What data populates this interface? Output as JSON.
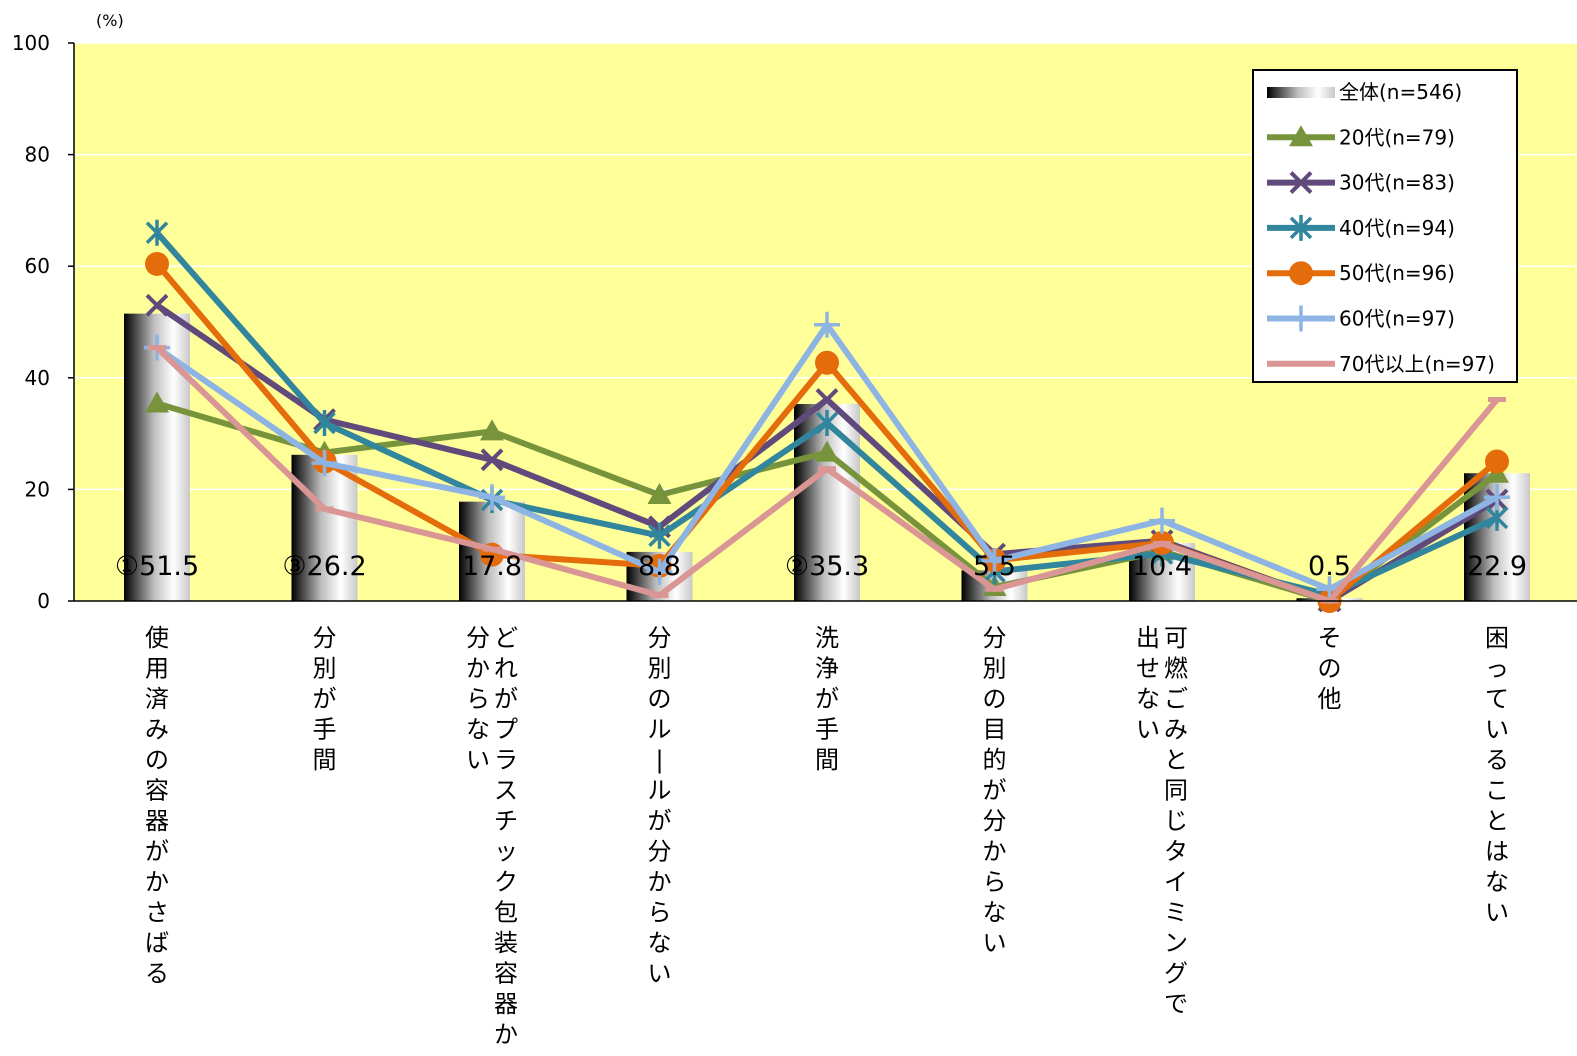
{
  "chart_data": {
    "type": "bar+line",
    "unit_label": "(%)",
    "ylim": [
      0,
      100
    ],
    "yticks": [
      0,
      20,
      40,
      60,
      80,
      100
    ],
    "grid": true,
    "legend_position": "top-right",
    "categories": [
      [
        "使用済みの容器がかさばる"
      ],
      [
        "分別が手間"
      ],
      [
        "どれがプラスチック包装容器か",
        "分からない"
      ],
      [
        "分別のルールが分からない"
      ],
      [
        "洗浄が手間"
      ],
      [
        "分別の目的が分からない"
      ],
      [
        "可燃ごみと同じタイミングで",
        "出せない"
      ],
      [
        "その他"
      ],
      [
        "困っていることはない"
      ]
    ],
    "bar_series": {
      "name": "全体(n=546)",
      "values": [
        51.5,
        26.2,
        17.8,
        8.8,
        35.3,
        5.5,
        10.4,
        0.5,
        22.9
      ],
      "labels": [
        "①51.5",
        "③26.2",
        "17.8",
        "8.8",
        "②35.3",
        "5.5",
        "10.4",
        "0.5",
        "22.9"
      ]
    },
    "line_series": [
      {
        "name": "20代(n=79)",
        "color": "#77933c",
        "marker": "triangle",
        "values": [
          35.4,
          26.6,
          30.4,
          19.0,
          26.6,
          2.5,
          8.9,
          0.0,
          22.8
        ]
      },
      {
        "name": "30代(n=83)",
        "color": "#604a7b",
        "marker": "x",
        "values": [
          53.0,
          32.5,
          25.3,
          13.3,
          36.1,
          8.4,
          10.8,
          0.0,
          18.1
        ]
      },
      {
        "name": "40代(n=94)",
        "color": "#31859c",
        "marker": "asterisk",
        "values": [
          66.0,
          31.9,
          18.1,
          11.7,
          31.9,
          5.3,
          8.5,
          1.1,
          14.9
        ]
      },
      {
        "name": "50代(n=96)",
        "color": "#e46c0a",
        "marker": "circle",
        "values": [
          60.4,
          25.0,
          8.3,
          6.3,
          42.7,
          7.3,
          10.4,
          0.0,
          25.0
        ]
      },
      {
        "name": "60代(n=97)",
        "color": "#8eb4e3",
        "marker": "plus",
        "values": [
          45.4,
          24.7,
          18.6,
          5.2,
          49.5,
          7.2,
          14.4,
          2.1,
          18.6
        ]
      },
      {
        "name": "70代以上(n=97)",
        "color": "#d99694",
        "marker": "dash",
        "values": [
          45.4,
          16.5,
          9.3,
          1.0,
          23.7,
          2.1,
          10.3,
          0.0,
          36.1
        ]
      }
    ]
  }
}
